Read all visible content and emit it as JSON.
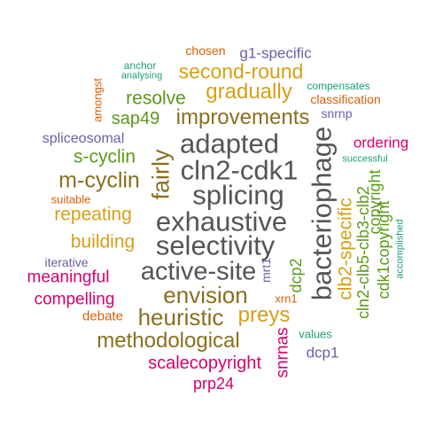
{
  "palette": {
    "dark_gray": "#555555",
    "brown": "#8B6F1E",
    "gold": "#D4A017",
    "olive_green": "#5A9A1A",
    "magenta": "#D6006C",
    "slate_blue": "#6A60A8",
    "teal": "#1B9E77",
    "orange": "#D95F02"
  },
  "words": [
    {
      "text": "chosen",
      "color": "#D95F02"
    },
    {
      "text": "g1-specific",
      "color": "#6A60A8"
    },
    {
      "text": "anchor",
      "color": "#1B9E77"
    },
    {
      "text": "analysing",
      "color": "#1B9E77"
    },
    {
      "text": "second-round",
      "color": "#D4A017"
    },
    {
      "text": "compensates",
      "color": "#1B9E77"
    },
    {
      "text": "amongst",
      "color": "#D95F02"
    },
    {
      "text": "resolve",
      "color": "#5A9A1A"
    },
    {
      "text": "gradually",
      "color": "#D4A017"
    },
    {
      "text": "classification",
      "color": "#D95F02"
    },
    {
      "text": "snrnp",
      "color": "#6A60A8"
    },
    {
      "text": "sap49",
      "color": "#5A9A1A"
    },
    {
      "text": "improvements",
      "color": "#8B6F1E"
    },
    {
      "text": "spliceosomal",
      "color": "#6A60A8"
    },
    {
      "text": "adapted",
      "color": "#555555"
    },
    {
      "text": "ordering",
      "color": "#D6006C"
    },
    {
      "text": "s-cyclin",
      "color": "#5A9A1A"
    },
    {
      "text": "fairly",
      "color": "#8B6F1E"
    },
    {
      "text": "successful",
      "color": "#1B9E77"
    },
    {
      "text": "bacteriophage",
      "color": "#555555"
    },
    {
      "text": "cln2-cdk1",
      "color": "#555555"
    },
    {
      "text": "m-cyclin",
      "color": "#8B6F1E"
    },
    {
      "text": "splicing",
      "color": "#555555"
    },
    {
      "text": "suitable",
      "color": "#D95F02"
    },
    {
      "text": "repeating",
      "color": "#D4A017"
    },
    {
      "text": "exhaustive",
      "color": "#555555"
    },
    {
      "text": "clb2-specific",
      "color": "#D4A017"
    },
    {
      "text": "cln2-clb5-clb3-clb2",
      "color": "#5A9A1A"
    },
    {
      "text": "copyright",
      "color": "#5A9A1A"
    },
    {
      "text": "cdk1copyright",
      "color": "#5A9A1A"
    },
    {
      "text": "accomplished",
      "color": "#1B9E77"
    },
    {
      "text": "building",
      "color": "#D4A017"
    },
    {
      "text": "selectivity",
      "color": "#555555"
    },
    {
      "text": "iterative",
      "color": "#6A60A8"
    },
    {
      "text": "meaningful",
      "color": "#D6006C"
    },
    {
      "text": "active-site",
      "color": "#555555"
    },
    {
      "text": "mrt1",
      "color": "#6A60A8"
    },
    {
      "text": "dcp2",
      "color": "#5A9A1A"
    },
    {
      "text": "compelling",
      "color": "#D6006C"
    },
    {
      "text": "envision",
      "color": "#8B6F1E"
    },
    {
      "text": "xrn1",
      "color": "#D95F02"
    },
    {
      "text": "debate",
      "color": "#D95F02"
    },
    {
      "text": "heuristic",
      "color": "#8B6F1E"
    },
    {
      "text": "preys",
      "color": "#D4A017"
    },
    {
      "text": "snrnas",
      "color": "#D6006C"
    },
    {
      "text": "values",
      "color": "#1B9E77"
    },
    {
      "text": "methodological",
      "color": "#8B6F1E"
    },
    {
      "text": "dcp1",
      "color": "#6A60A8"
    },
    {
      "text": "scalecopyright",
      "color": "#D6006C"
    },
    {
      "text": "prp24",
      "color": "#D6006C"
    }
  ]
}
